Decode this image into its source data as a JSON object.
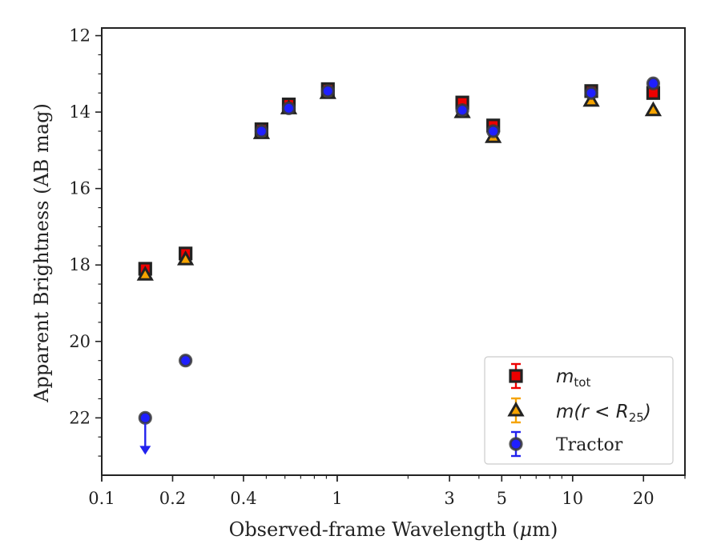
{
  "chart_data": {
    "type": "scatter",
    "xlabel_pre": "Observed-frame Wavelength (",
    "xlabel_mu": "μ",
    "xlabel_post": "m)",
    "ylabel": "Apparent Brightness (AB mag)",
    "xscale": "log",
    "xlim": [
      0.1,
      30
    ],
    "ylim": [
      23.5,
      11.8
    ],
    "y_inverted": true,
    "grid": false,
    "legend_position": "lower-right",
    "x_ticks": [
      {
        "value": 0.1,
        "label": "0.1"
      },
      {
        "value": 0.2,
        "label": "0.2"
      },
      {
        "value": 0.4,
        "label": "0.4"
      },
      {
        "value": 1,
        "label": "1"
      },
      {
        "value": 3,
        "label": "3"
      },
      {
        "value": 5,
        "label": "5"
      },
      {
        "value": 10,
        "label": "10"
      },
      {
        "value": 20,
        "label": "20"
      }
    ],
    "y_ticks": [
      {
        "value": 12,
        "label": "12"
      },
      {
        "value": 14,
        "label": "14"
      },
      {
        "value": 16,
        "label": "16"
      },
      {
        "value": 18,
        "label": "18"
      },
      {
        "value": 20,
        "label": "20"
      },
      {
        "value": 22,
        "label": "22"
      }
    ],
    "series": [
      {
        "legend_main": "m",
        "legend_sub": "tot",
        "marker": "square",
        "fill": "#ee0000",
        "errorbar_color": "#ee0000",
        "x": [
          0.153,
          0.227,
          0.477,
          0.623,
          0.913,
          3.4,
          4.6,
          12.0,
          22.0
        ],
        "y": [
          18.1,
          17.7,
          14.45,
          13.8,
          13.4,
          13.75,
          14.35,
          13.45,
          13.5
        ]
      },
      {
        "legend_pre": "m(r < R",
        "legend_sub": "25",
        "legend_post": ")",
        "marker": "triangle",
        "fill": "#f5a300",
        "errorbar_color": "#f5a300",
        "x": [
          0.153,
          0.227,
          0.477,
          0.623,
          0.913,
          3.4,
          4.6,
          12.0,
          22.0
        ],
        "y": [
          18.25,
          17.85,
          14.55,
          13.9,
          13.5,
          14.0,
          14.65,
          13.7,
          13.95
        ]
      },
      {
        "name": "Tractor",
        "marker": "circle",
        "fill": "#1f1fff",
        "errorbar_color": "#2222ee",
        "x": [
          0.153,
          0.227,
          0.477,
          0.623,
          0.913,
          3.4,
          4.6,
          12.0,
          22.0
        ],
        "y": [
          22.0,
          20.5,
          14.5,
          13.9,
          13.45,
          13.95,
          14.5,
          13.5,
          13.25
        ],
        "upper_limit_x": [
          0.153
        ]
      }
    ]
  }
}
